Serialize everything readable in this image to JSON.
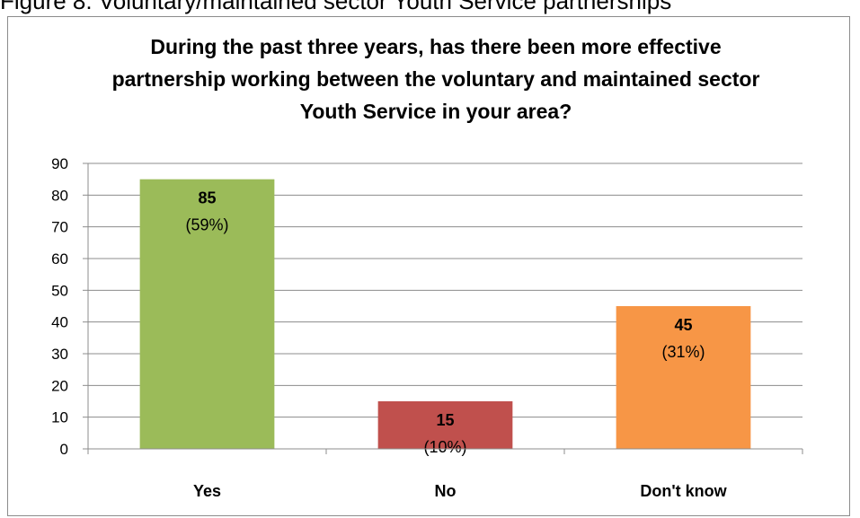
{
  "caption": "Figure 8: Voluntary/maintained sector Youth Service partnerships",
  "chart_data": {
    "type": "bar",
    "title": "During the past three years, has there been more effective partnership working between the voluntary and maintained sector Youth Service in your area?",
    "xlabel": "",
    "ylabel": "",
    "ylim": [
      0,
      90
    ],
    "yticks": [
      0,
      10,
      20,
      30,
      40,
      50,
      60,
      70,
      80,
      90
    ],
    "grid": true,
    "legend": "none",
    "categories": [
      "Yes",
      "No",
      "Don't know"
    ],
    "values": [
      85,
      15,
      45
    ],
    "percent_labels": [
      "(59%)",
      "(10%)",
      "(31%)"
    ],
    "colors": [
      "#9bbb59",
      "#c0504d",
      "#f79646"
    ]
  }
}
